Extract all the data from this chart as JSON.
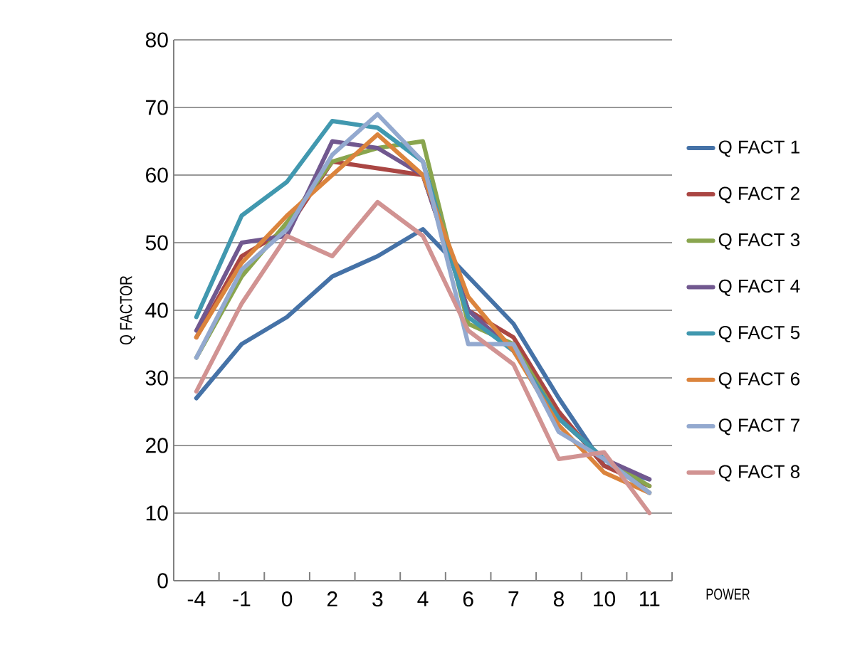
{
  "chart_data": {
    "type": "line",
    "xlabel": "POWER",
    "ylabel": "Q FACTOR",
    "categories": [
      "-4",
      "-1",
      "0",
      "2",
      "3",
      "4",
      "6",
      "7",
      "8",
      "10",
      "11"
    ],
    "ylim": [
      0,
      80
    ],
    "yticks": [
      0,
      10,
      20,
      30,
      40,
      50,
      60,
      70,
      80
    ],
    "grid": "y",
    "legend": "right",
    "marker": "none",
    "line_style": "solid",
    "series": [
      {
        "name": "Q FACT 1",
        "color": "#4572a7",
        "values": [
          27,
          35,
          39,
          45,
          48,
          52,
          45,
          38,
          27,
          17,
          15
        ]
      },
      {
        "name": "Q FACT 2",
        "color": "#aa4643",
        "values": [
          36,
          48,
          52,
          62,
          61,
          60,
          40,
          36,
          25,
          17,
          14
        ]
      },
      {
        "name": "Q FACT 3",
        "color": "#89a54e",
        "values": [
          33,
          45,
          53,
          62,
          64,
          65,
          38,
          35,
          24,
          18,
          14
        ]
      },
      {
        "name": "Q FACT 4",
        "color": "#71588f",
        "values": [
          37,
          50,
          51,
          65,
          64,
          60,
          40,
          34,
          24,
          18,
          15
        ]
      },
      {
        "name": "Q FACT 5",
        "color": "#4198af",
        "values": [
          39,
          54,
          59,
          68,
          67,
          62,
          39,
          34,
          24,
          18,
          13
        ]
      },
      {
        "name": "Q FACT 6",
        "color": "#db843d",
        "values": [
          36,
          47,
          54,
          60,
          66,
          60,
          42,
          34,
          23,
          16,
          13
        ]
      },
      {
        "name": "Q FACT 7",
        "color": "#93a9cf",
        "values": [
          33,
          46,
          52,
          63,
          69,
          62,
          35,
          35,
          22,
          18,
          13
        ]
      },
      {
        "name": "Q FACT 8",
        "color": "#d19392",
        "values": [
          28,
          41,
          51,
          48,
          56,
          51,
          37,
          32,
          18,
          19,
          10
        ]
      }
    ]
  }
}
